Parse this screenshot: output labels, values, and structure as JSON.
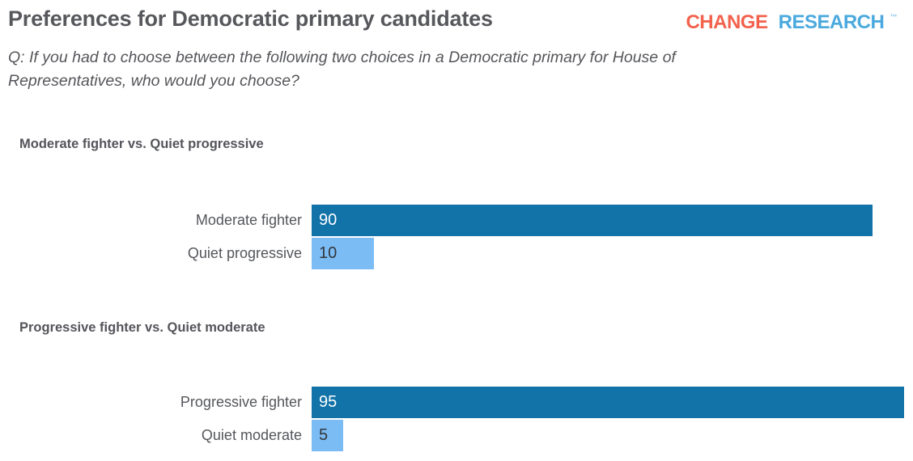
{
  "header": {
    "title": "Preferences for Democratic primary candidates",
    "question_line1": "Q: If you had to choose between the following two choices in a Democratic primary for House of",
    "question_line2": "Representatives, who would you choose?",
    "logo": {
      "change": "CHANGE",
      "research": "RESEARCH",
      "tm": "™"
    }
  },
  "colors": {
    "dark_bar": "#1273A9",
    "light_bar": "#7CBCF5",
    "logo_change": "#F2624D",
    "logo_research": "#4BA9DE",
    "heading_text": "#57585C",
    "body_text": "#55565A"
  },
  "chart_data": [
    {
      "type": "bar",
      "orientation": "horizontal",
      "title": "Moderate fighter vs. Quiet progressive",
      "categories": [
        "Moderate fighter",
        "Quiet progressive"
      ],
      "values": [
        90,
        10
      ],
      "value_labels": [
        "90",
        "10"
      ],
      "xlim": [
        0,
        95
      ],
      "bar_colors": [
        "#1273A9",
        "#7CBCF5"
      ],
      "value_label_colors": [
        "#FFFFFF",
        "#32373B"
      ],
      "grid": false,
      "legend": false
    },
    {
      "type": "bar",
      "orientation": "horizontal",
      "title": "Progressive fighter vs. Quiet moderate",
      "categories": [
        "Progressive fighter",
        "Quiet moderate"
      ],
      "values": [
        95,
        5
      ],
      "value_labels": [
        "95",
        "5"
      ],
      "xlim": [
        0,
        95
      ],
      "bar_colors": [
        "#1273A9",
        "#7CBCF5"
      ],
      "value_label_colors": [
        "#FFFFFF",
        "#32373B"
      ],
      "grid": false,
      "legend": false
    }
  ]
}
